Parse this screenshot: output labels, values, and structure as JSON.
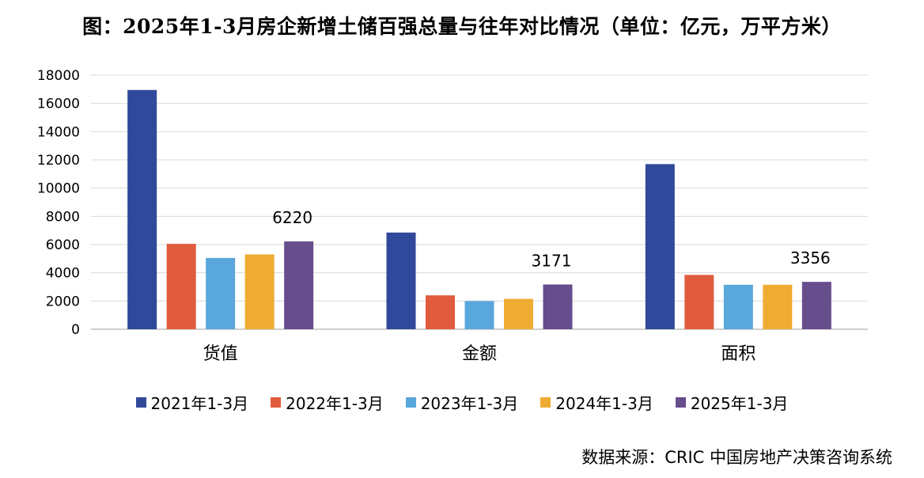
{
  "colors": {
    "series": [
      "#30499a",
      "#e05c3c",
      "#5aa7dc",
      "#efab32",
      "#664d8c"
    ],
    "grid": "#d9d9d9",
    "axis": "#bfbfbf"
  },
  "chart_data": {
    "type": "bar",
    "title": "图：2025年1-3月房企新增土储百强总量与往年对比情况（单位：亿元，万平方米）",
    "categories": [
      "货值",
      "金额",
      "面积"
    ],
    "series": [
      {
        "name": "2021年1-3月",
        "values": [
          16950,
          6850,
          11700
        ]
      },
      {
        "name": "2022年1-3月",
        "values": [
          6050,
          2400,
          3850
        ]
      },
      {
        "name": "2023年1-3月",
        "values": [
          5050,
          2000,
          3150
        ]
      },
      {
        "name": "2024年1-3月",
        "values": [
          5300,
          2150,
          3150
        ]
      },
      {
        "name": "2025年1-3月",
        "values": [
          6220,
          3171,
          3356
        ]
      }
    ],
    "data_labels": [
      {
        "series": 4,
        "category": 0,
        "text": "6220"
      },
      {
        "series": 4,
        "category": 1,
        "text": "3171"
      },
      {
        "series": 4,
        "category": 2,
        "text": "3356"
      }
    ],
    "yticks": [
      "0",
      "2000",
      "4000",
      "6000",
      "8000",
      "10000",
      "12000",
      "14000",
      "16000",
      "18000"
    ],
    "ylim": [
      0,
      18000
    ],
    "grid": true,
    "legend_position": "bottom"
  },
  "source": "数据来源：CRIC 中国房地产决策咨询系统"
}
